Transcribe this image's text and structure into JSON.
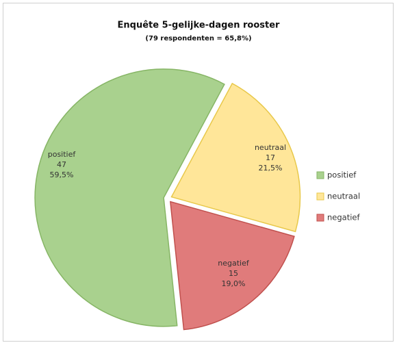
{
  "chart_data": {
    "type": "pie",
    "title": "Enquête 5-gelijke-dagen rooster",
    "subtitle": "(79 respondenten = 65,8%)",
    "categories": [
      "positief",
      "neutraal",
      "negatief"
    ],
    "values": [
      47,
      17,
      15
    ],
    "percentages": [
      59.5,
      21.5,
      19.0
    ],
    "percentage_labels": [
      "59,5%",
      "21,5%",
      "19,0%"
    ],
    "colors": [
      "#a9d18e",
      "#ffe699",
      "#e07b7b"
    ],
    "legend": "right"
  }
}
